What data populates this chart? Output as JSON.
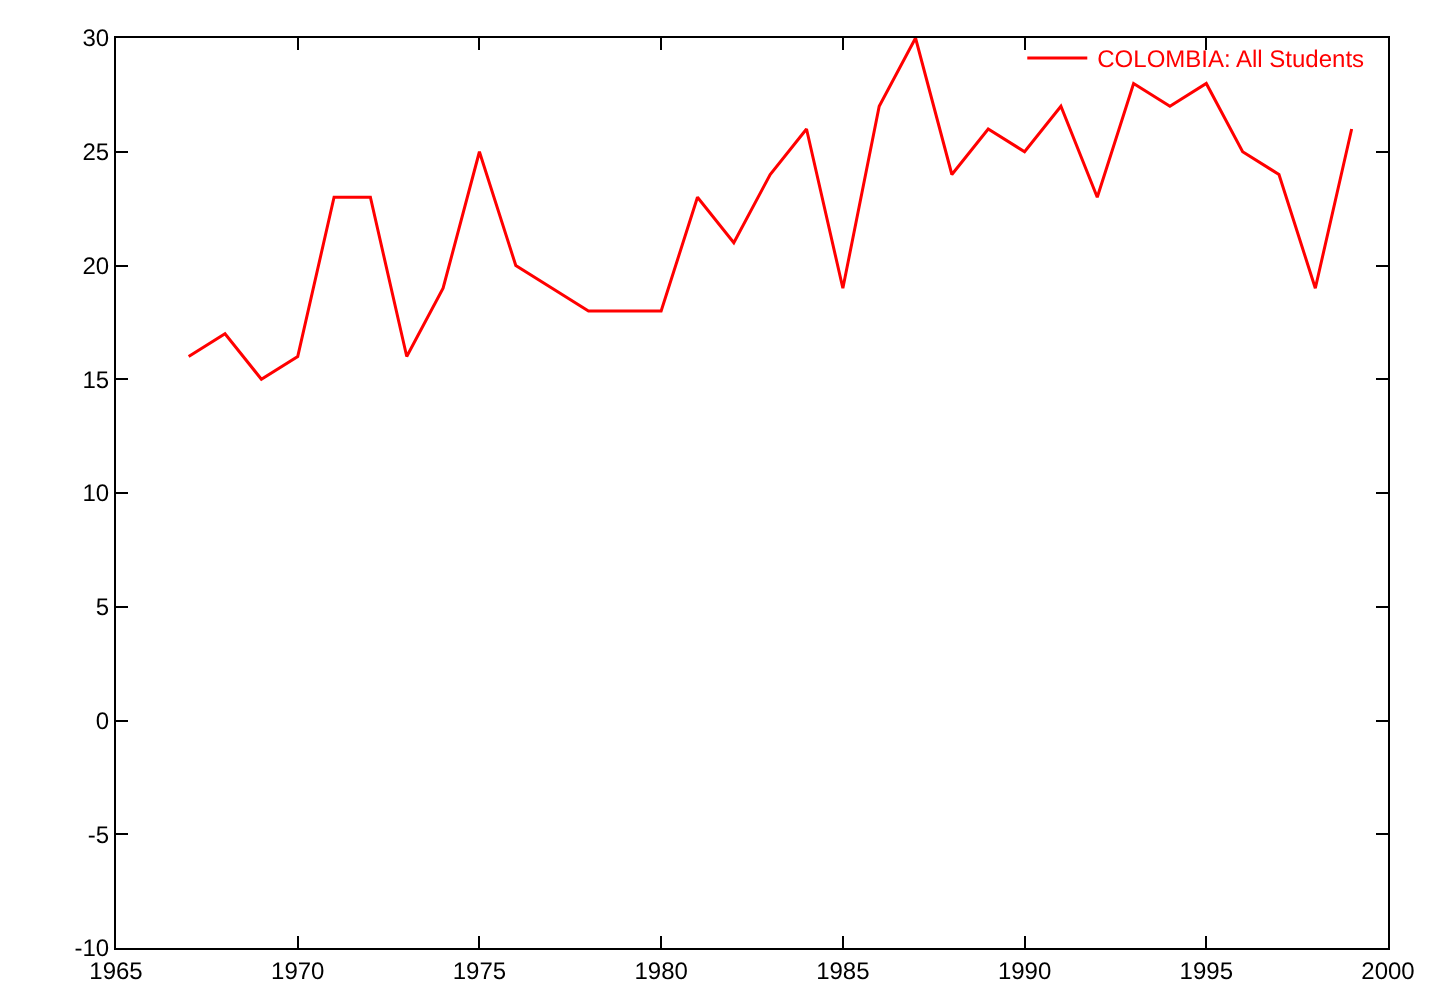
{
  "chart_data": {
    "type": "line",
    "x": [
      1967,
      1968,
      1969,
      1970,
      1971,
      1972,
      1973,
      1974,
      1975,
      1976,
      1977,
      1978,
      1979,
      1980,
      1981,
      1982,
      1983,
      1984,
      1985,
      1986,
      1987,
      1988,
      1989,
      1990,
      1991,
      1992,
      1993,
      1994,
      1995,
      1996,
      1997,
      1998,
      1999
    ],
    "series": [
      {
        "name": "COLOMBIA: All Students",
        "color": "#ff0000",
        "values": [
          16,
          17,
          15,
          16,
          23,
          23,
          16,
          19,
          25,
          20,
          19,
          18,
          18,
          18,
          23,
          21,
          24,
          26,
          19,
          27,
          30,
          24,
          26,
          25,
          27,
          23,
          28,
          27,
          28,
          25,
          24,
          19,
          26
        ]
      }
    ],
    "xlim": [
      1965,
      2000
    ],
    "xticks": [
      1965,
      1970,
      1975,
      1980,
      1985,
      1990,
      1995,
      2000
    ],
    "ylim": [
      -10,
      30
    ],
    "yticks": [
      -10,
      -5,
      0,
      5,
      10,
      15,
      20,
      25,
      30
    ],
    "grid": false,
    "legend": "top right",
    "marker": "none",
    "line_style": "solid"
  }
}
